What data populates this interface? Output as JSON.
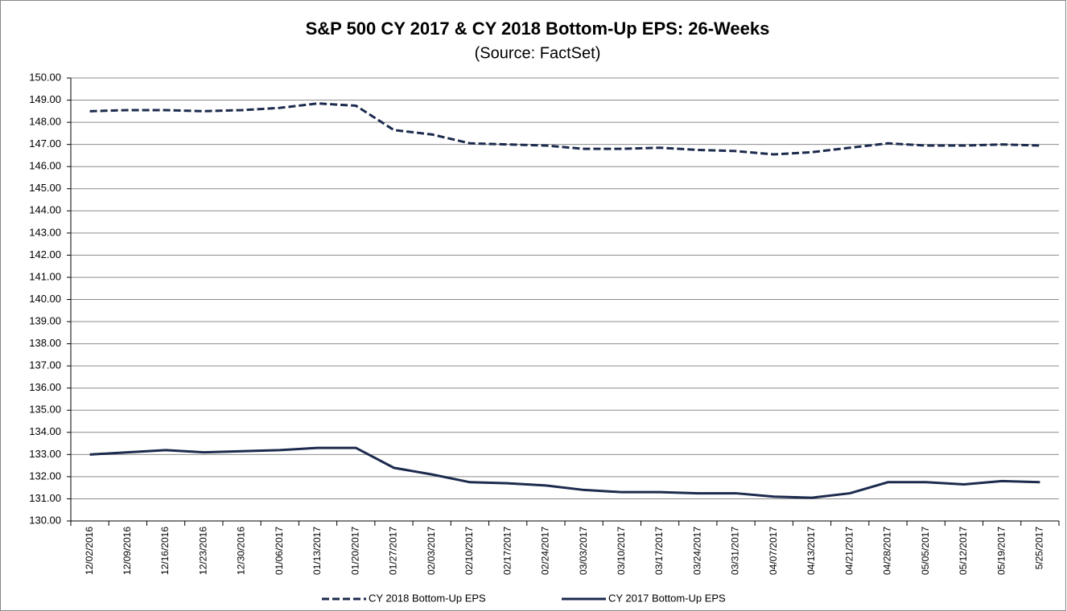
{
  "chart_data": {
    "type": "line",
    "title": "S&P 500 CY 2017 & CY 2018 Bottom-Up  EPS: 26-Weeks",
    "subtitle": "(Source: FactSet)",
    "categories": [
      "12/02/2016",
      "12/09/2016",
      "12/16/2016",
      "12/23/2016",
      "12/30/2016",
      "01/06/2017",
      "01/13/2017",
      "01/20/2017",
      "01/27/2017",
      "02/03/2017",
      "02/10/2017",
      "02/17/2017",
      "02/24/2017",
      "03/03/2017",
      "03/10/2017",
      "03/17/2017",
      "03/24/2017",
      "03/31/2017",
      "04/07/2017",
      "04/13/2017",
      "04/21/2017",
      "04/28/2017",
      "05/05/2017",
      "05/12/2017",
      "05/19/2017",
      "5/25/2017"
    ],
    "series": [
      {
        "name": "CY 2018 Bottom-Up EPS",
        "color": "#1c2a4d",
        "dashed": true,
        "values": [
          148.5,
          148.55,
          148.55,
          148.5,
          148.55,
          148.65,
          148.85,
          148.75,
          147.65,
          147.45,
          147.05,
          147.0,
          146.95,
          146.8,
          146.8,
          146.85,
          146.75,
          146.7,
          146.55,
          146.65,
          146.85,
          147.05,
          146.95,
          146.95,
          147.0,
          146.95
        ]
      },
      {
        "name": "CY 2017 Bottom-Up EPS",
        "color": "#1c2a4d",
        "dashed": false,
        "values": [
          133.0,
          133.1,
          133.2,
          133.1,
          133.15,
          133.2,
          133.3,
          133.3,
          132.4,
          132.1,
          131.75,
          131.7,
          131.6,
          131.4,
          131.3,
          131.3,
          131.25,
          131.25,
          131.1,
          131.05,
          131.25,
          131.75,
          131.75,
          131.65,
          131.8,
          131.75
        ]
      }
    ],
    "ylim": [
      130,
      150
    ],
    "yticks": [
      {
        "value": 130,
        "label": "130.00"
      },
      {
        "value": 131,
        "label": "131.00"
      },
      {
        "value": 132,
        "label": "132.00"
      },
      {
        "value": 133,
        "label": "133.00"
      },
      {
        "value": 134,
        "label": "134.00"
      },
      {
        "value": 135,
        "label": "135.00"
      },
      {
        "value": 136,
        "label": "136.00"
      },
      {
        "value": 137,
        "label": "137.00"
      },
      {
        "value": 138,
        "label": "138.00"
      },
      {
        "value": 139,
        "label": "139.00"
      },
      {
        "value": 140,
        "label": "140.00"
      },
      {
        "value": 141,
        "label": "141.00"
      },
      {
        "value": 142,
        "label": "142.00"
      },
      {
        "value": 143,
        "label": "143.00"
      },
      {
        "value": 144,
        "label": "144.00"
      },
      {
        "value": 145,
        "label": "145.00"
      },
      {
        "value": 146,
        "label": "146.00"
      },
      {
        "value": 147,
        "label": "147.00"
      },
      {
        "value": 148,
        "label": "148.00"
      },
      {
        "value": 149,
        "label": "149.00"
      },
      {
        "value": 150,
        "label": "150.00"
      }
    ],
    "grid": true,
    "legend": "bottom"
  }
}
